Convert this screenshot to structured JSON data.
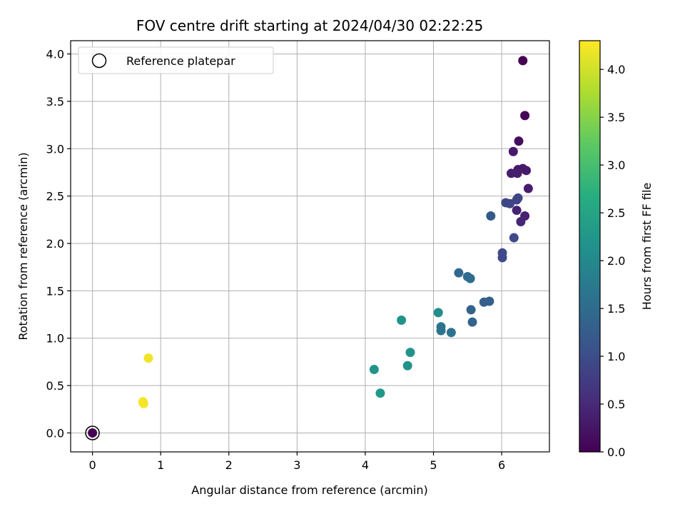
{
  "chart_data": {
    "type": "scatter",
    "title": "FOV centre drift starting at 2024/04/30 02:22:25",
    "xlabel": "Angular distance from reference (arcmin)",
    "ylabel": "Rotation from reference (arcmin)",
    "xlim": [
      -0.32,
      6.7
    ],
    "ylim": [
      -0.2,
      4.14
    ],
    "xticks": [
      0,
      1,
      2,
      3,
      4,
      5,
      6
    ],
    "xtick_labels": [
      "0",
      "1",
      "2",
      "3",
      "4",
      "5",
      "6"
    ],
    "yticks": [
      0.0,
      0.5,
      1.0,
      1.5,
      2.0,
      2.5,
      3.0,
      3.5,
      4.0
    ],
    "ytick_labels": [
      "0.0",
      "0.5",
      "1.0",
      "1.5",
      "2.0",
      "2.5",
      "3.0",
      "3.5",
      "4.0"
    ],
    "grid": true,
    "legend": {
      "placement": "top-left",
      "entries": [
        "Reference platepar"
      ]
    },
    "reference_point": {
      "x": 0,
      "y": 0
    },
    "colorbar": {
      "label": "Hours from first FF file",
      "colormap": "viridis",
      "range": [
        0.0,
        4.3
      ],
      "ticks": [
        0.0,
        0.5,
        1.0,
        1.5,
        2.0,
        2.5,
        3.0,
        3.5,
        4.0
      ],
      "tick_labels": [
        "0.0",
        "0.5",
        "1.0",
        "1.5",
        "2.0",
        "2.5",
        "3.0",
        "3.5",
        "4.0"
      ]
    },
    "points": [
      {
        "x": 0.0,
        "y": 0.0,
        "hours": 0.0
      },
      {
        "x": 6.31,
        "y": 3.93,
        "hours": 0.0
      },
      {
        "x": 6.34,
        "y": 3.35,
        "hours": 0.05
      },
      {
        "x": 6.25,
        "y": 3.08,
        "hours": 0.15
      },
      {
        "x": 6.17,
        "y": 2.97,
        "hours": 0.3
      },
      {
        "x": 6.24,
        "y": 2.78,
        "hours": 0.3
      },
      {
        "x": 6.31,
        "y": 2.79,
        "hours": 0.3
      },
      {
        "x": 6.36,
        "y": 2.77,
        "hours": 0.3
      },
      {
        "x": 6.14,
        "y": 2.74,
        "hours": 0.35
      },
      {
        "x": 6.23,
        "y": 2.74,
        "hours": 0.35
      },
      {
        "x": 6.39,
        "y": 2.58,
        "hours": 0.35
      },
      {
        "x": 6.22,
        "y": 2.35,
        "hours": 0.4
      },
      {
        "x": 6.34,
        "y": 2.29,
        "hours": 0.4
      },
      {
        "x": 6.28,
        "y": 2.23,
        "hours": 0.45
      },
      {
        "x": 6.24,
        "y": 2.48,
        "hours": 0.9
      },
      {
        "x": 6.22,
        "y": 2.46,
        "hours": 0.9
      },
      {
        "x": 6.06,
        "y": 2.43,
        "hours": 0.9
      },
      {
        "x": 6.12,
        "y": 2.42,
        "hours": 0.9
      },
      {
        "x": 6.18,
        "y": 2.06,
        "hours": 0.95
      },
      {
        "x": 6.01,
        "y": 1.9,
        "hours": 0.95
      },
      {
        "x": 6.01,
        "y": 1.85,
        "hours": 0.95
      },
      {
        "x": 5.84,
        "y": 2.29,
        "hours": 1.2
      },
      {
        "x": 5.82,
        "y": 1.39,
        "hours": 1.3
      },
      {
        "x": 5.74,
        "y": 1.38,
        "hours": 1.3
      },
      {
        "x": 5.55,
        "y": 1.3,
        "hours": 1.35
      },
      {
        "x": 5.57,
        "y": 1.17,
        "hours": 1.35
      },
      {
        "x": 5.37,
        "y": 1.69,
        "hours": 1.45
      },
      {
        "x": 5.5,
        "y": 1.65,
        "hours": 1.5
      },
      {
        "x": 5.54,
        "y": 1.63,
        "hours": 1.5
      },
      {
        "x": 5.11,
        "y": 1.12,
        "hours": 1.65
      },
      {
        "x": 5.11,
        "y": 1.08,
        "hours": 1.65
      },
      {
        "x": 5.26,
        "y": 1.06,
        "hours": 1.65
      },
      {
        "x": 5.07,
        "y": 1.27,
        "hours": 2.1
      },
      {
        "x": 4.53,
        "y": 1.19,
        "hours": 2.2
      },
      {
        "x": 4.66,
        "y": 0.85,
        "hours": 2.2
      },
      {
        "x": 4.62,
        "y": 0.71,
        "hours": 2.2
      },
      {
        "x": 4.13,
        "y": 0.67,
        "hours": 2.2
      },
      {
        "x": 4.22,
        "y": 0.42,
        "hours": 2.3
      },
      {
        "x": 0.82,
        "y": 0.79,
        "hours": 4.2
      },
      {
        "x": 0.74,
        "y": 0.33,
        "hours": 4.25
      },
      {
        "x": 0.75,
        "y": 0.31,
        "hours": 4.25
      }
    ]
  }
}
